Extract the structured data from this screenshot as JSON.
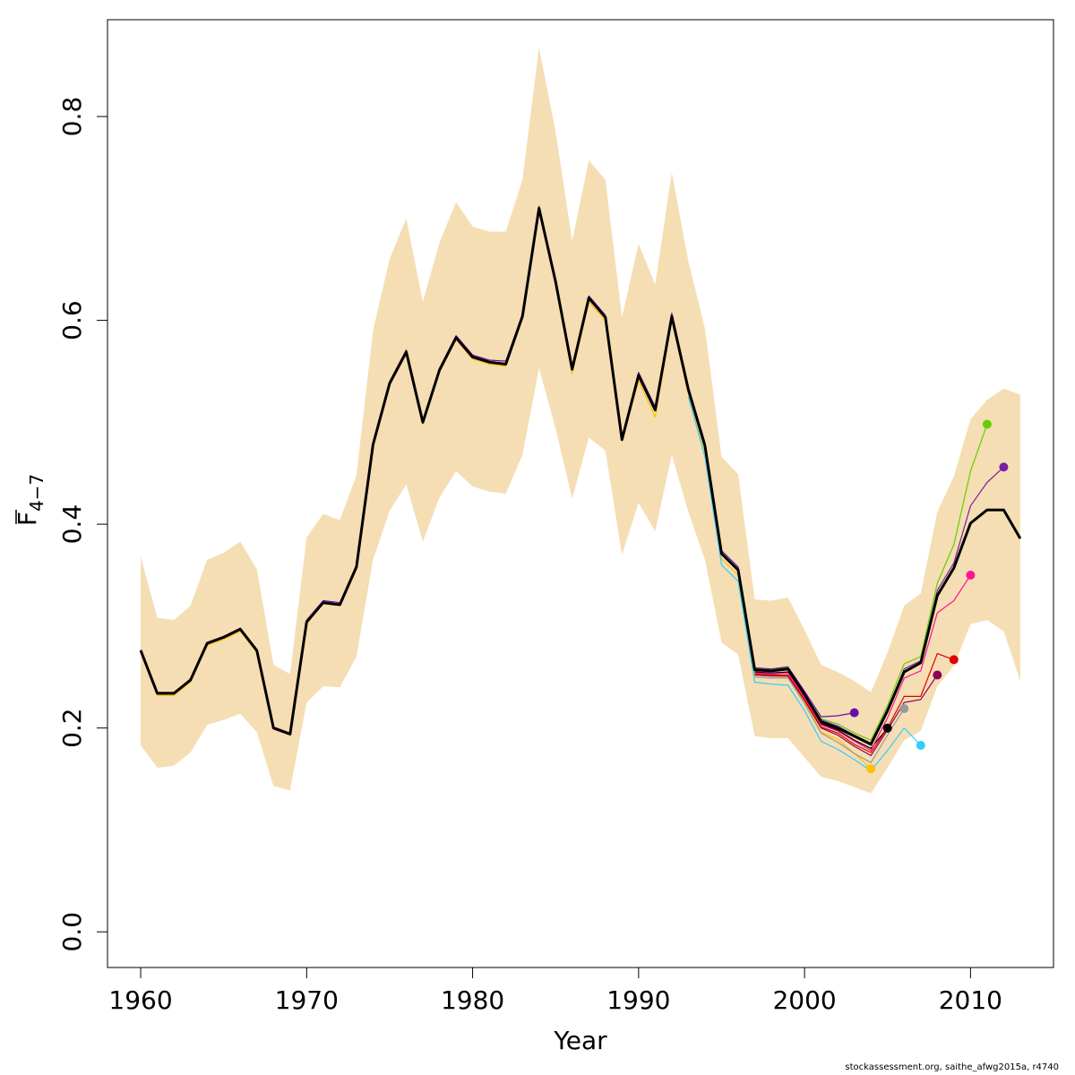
{
  "chart_data": {
    "type": "line",
    "title": "",
    "xlabel": "Year",
    "ylabel_main": "F",
    "ylabel_sub": "4−7",
    "xlim": [
      1958,
      2015
    ],
    "ylim": [
      -0.035,
      0.895
    ],
    "xticks": [
      1960,
      1970,
      1980,
      1990,
      2000,
      2010
    ],
    "yticks": [
      0.0,
      0.2,
      0.4,
      0.6,
      0.8
    ],
    "ytick_labels": [
      "0.0",
      "0.2",
      "0.4",
      "0.6",
      "0.8"
    ],
    "grid": false,
    "band": {
      "color": "#F5DEB3",
      "x": [
        1960,
        1961,
        1962,
        1963,
        1964,
        1965,
        1966,
        1967,
        1968,
        1969,
        1970,
        1971,
        1972,
        1973,
        1974,
        1975,
        1976,
        1977,
        1978,
        1979,
        1980,
        1981,
        1982,
        1983,
        1984,
        1985,
        1986,
        1987,
        1988,
        1989,
        1990,
        1991,
        1992,
        1993,
        1994,
        1995,
        1996,
        1997,
        1998,
        1999,
        2000,
        2001,
        2002,
        2003,
        2004,
        2005,
        2006,
        2007,
        2008,
        2009,
        2010,
        2011,
        2012,
        2013
      ],
      "upper": [
        0.368,
        0.308,
        0.306,
        0.32,
        0.365,
        0.372,
        0.383,
        0.356,
        0.262,
        0.253,
        0.387,
        0.41,
        0.404,
        0.448,
        0.59,
        0.66,
        0.7,
        0.618,
        0.676,
        0.716,
        0.692,
        0.687,
        0.687,
        0.738,
        0.868,
        0.785,
        0.678,
        0.757,
        0.738,
        0.603,
        0.675,
        0.635,
        0.745,
        0.658,
        0.592,
        0.466,
        0.449,
        0.326,
        0.325,
        0.328,
        0.296,
        0.262,
        0.255,
        0.246,
        0.235,
        0.274,
        0.32,
        0.332,
        0.412,
        0.447,
        0.503,
        0.522,
        0.533,
        0.527
      ],
      "lower": [
        0.183,
        0.161,
        0.163,
        0.176,
        0.203,
        0.208,
        0.214,
        0.196,
        0.143,
        0.139,
        0.225,
        0.241,
        0.24,
        0.27,
        0.365,
        0.413,
        0.439,
        0.383,
        0.426,
        0.452,
        0.437,
        0.432,
        0.43,
        0.468,
        0.553,
        0.494,
        0.425,
        0.485,
        0.472,
        0.37,
        0.421,
        0.393,
        0.468,
        0.412,
        0.365,
        0.284,
        0.272,
        0.192,
        0.19,
        0.19,
        0.171,
        0.152,
        0.148,
        0.142,
        0.136,
        0.161,
        0.188,
        0.197,
        0.241,
        0.261,
        0.302,
        0.306,
        0.295,
        0.246
      ]
    },
    "series": [
      {
        "color": "#6A0DAD",
        "end_marker": true,
        "x": [
          1960,
          1961,
          1962,
          1963,
          1964,
          1965,
          1966,
          1967,
          1968,
          1969,
          1970,
          1971,
          1972,
          1973,
          1974,
          1975,
          1976,
          1977,
          1978,
          1979,
          1980,
          1981,
          1982,
          1983,
          1984,
          1985,
          1986,
          1987,
          1988,
          1989,
          1990,
          1991,
          1992,
          1993,
          1994,
          1995,
          1996,
          1997,
          1998,
          1999,
          2000,
          2001,
          2002,
          2003
        ],
        "y": [
          0.277,
          0.235,
          0.235,
          0.248,
          0.284,
          0.29,
          0.298,
          0.277,
          0.201,
          0.195,
          0.306,
          0.325,
          0.323,
          0.36,
          0.48,
          0.54,
          0.571,
          0.501,
          0.553,
          0.585,
          0.566,
          0.561,
          0.56,
          0.606,
          0.712,
          0.64,
          0.555,
          0.624,
          0.605,
          0.485,
          0.549,
          0.515,
          0.607,
          0.535,
          0.48,
          0.374,
          0.358,
          0.259,
          0.258,
          0.26,
          0.236,
          0.211,
          0.212,
          0.215
        ]
      },
      {
        "color": "#FFC000",
        "end_marker": true,
        "x": [
          1960,
          1961,
          1962,
          1963,
          1964,
          1965,
          1966,
          1967,
          1968,
          1969,
          1970,
          1971,
          1972,
          1973,
          1974,
          1975,
          1976,
          1977,
          1978,
          1979,
          1980,
          1981,
          1982,
          1983,
          1984,
          1985,
          1986,
          1987,
          1988,
          1989,
          1990,
          1991,
          1992,
          1993,
          1994,
          1995,
          1996,
          1997,
          1998,
          1999,
          2000,
          2001,
          2002,
          2003,
          2004
        ],
        "y": [
          0.274,
          0.232,
          0.232,
          0.245,
          0.281,
          0.287,
          0.295,
          0.274,
          0.199,
          0.193,
          0.302,
          0.322,
          0.32,
          0.356,
          0.476,
          0.536,
          0.567,
          0.498,
          0.549,
          0.581,
          0.562,
          0.557,
          0.555,
          0.602,
          0.707,
          0.635,
          0.548,
          0.618,
          0.6,
          0.481,
          0.541,
          0.505,
          0.6,
          0.528,
          0.472,
          0.366,
          0.35,
          0.25,
          0.249,
          0.25,
          0.226,
          0.196,
          0.189,
          0.175,
          0.16
        ]
      },
      {
        "color": "#000000",
        "end_marker": true,
        "x": [
          1997,
          1998,
          1999,
          2000,
          2001,
          2002,
          2003,
          2004,
          2005
        ],
        "y": [
          0.255,
          0.254,
          0.255,
          0.231,
          0.204,
          0.198,
          0.188,
          0.18,
          0.2
        ]
      },
      {
        "color": "#999999",
        "end_marker": true,
        "x": [
          1997,
          1998,
          1999,
          2000,
          2001,
          2002,
          2003,
          2004,
          2005,
          2006
        ],
        "y": [
          0.25,
          0.249,
          0.249,
          0.224,
          0.195,
          0.186,
          0.175,
          0.166,
          0.193,
          0.219
        ]
      },
      {
        "color": "#33CCFF",
        "end_marker": true,
        "x": [
          1993,
          1994,
          1995,
          1996,
          1997,
          1998,
          1999,
          2000,
          2001,
          2002,
          2003,
          2004,
          2005,
          2006,
          2007
        ],
        "y": [
          0.525,
          0.466,
          0.36,
          0.344,
          0.245,
          0.243,
          0.242,
          0.217,
          0.187,
          0.179,
          0.169,
          0.158,
          0.178,
          0.2,
          0.183
        ]
      },
      {
        "color": "#8B0057",
        "end_marker": true,
        "x": [
          1997,
          1998,
          1999,
          2000,
          2001,
          2002,
          2003,
          2004,
          2005,
          2006,
          2007,
          2008
        ],
        "y": [
          0.252,
          0.251,
          0.251,
          0.227,
          0.2,
          0.193,
          0.182,
          0.173,
          0.198,
          0.225,
          0.228,
          0.252
        ]
      },
      {
        "color": "#E00000",
        "end_marker": true,
        "x": [
          1997,
          1998,
          1999,
          2000,
          2001,
          2002,
          2003,
          2004,
          2005,
          2006,
          2007,
          2008,
          2009
        ],
        "y": [
          0.253,
          0.252,
          0.252,
          0.228,
          0.201,
          0.195,
          0.184,
          0.176,
          0.2,
          0.231,
          0.231,
          0.273,
          0.267
        ]
      },
      {
        "color": "#FF1493",
        "end_marker": true,
        "x": [
          1997,
          1998,
          1999,
          2000,
          2001,
          2002,
          2003,
          2004,
          2005,
          2006,
          2007,
          2008,
          2009,
          2010
        ],
        "y": [
          0.254,
          0.253,
          0.254,
          0.23,
          0.203,
          0.197,
          0.187,
          0.178,
          0.21,
          0.249,
          0.256,
          0.313,
          0.325,
          0.35
        ]
      },
      {
        "color": "#66CC00",
        "end_marker": true,
        "x": [
          1997,
          1998,
          1999,
          2000,
          2001,
          2002,
          2003,
          2004,
          2005,
          2006,
          2007,
          2008,
          2009,
          2010,
          2011
        ],
        "y": [
          0.258,
          0.257,
          0.259,
          0.234,
          0.209,
          0.204,
          0.195,
          0.188,
          0.222,
          0.263,
          0.27,
          0.342,
          0.38,
          0.452,
          0.498
        ]
      },
      {
        "color": "#7B1FA2",
        "end_marker": true,
        "x": [
          1997,
          1998,
          1999,
          2000,
          2001,
          2002,
          2003,
          2004,
          2005,
          2006,
          2007,
          2008,
          2009,
          2010,
          2011,
          2012
        ],
        "y": [
          0.257,
          0.256,
          0.258,
          0.233,
          0.208,
          0.202,
          0.193,
          0.185,
          0.218,
          0.258,
          0.266,
          0.335,
          0.362,
          0.418,
          0.441,
          0.456
        ]
      },
      {
        "color": "#000000",
        "end_marker": false,
        "bold": true,
        "x": [
          1960,
          1961,
          1962,
          1963,
          1964,
          1965,
          1966,
          1967,
          1968,
          1969,
          1970,
          1971,
          1972,
          1973,
          1974,
          1975,
          1976,
          1977,
          1978,
          1979,
          1980,
          1981,
          1982,
          1983,
          1984,
          1985,
          1986,
          1987,
          1988,
          1989,
          1990,
          1991,
          1992,
          1993,
          1994,
          1995,
          1996,
          1997,
          1998,
          1999,
          2000,
          2001,
          2002,
          2003,
          2004,
          2005,
          2006,
          2007,
          2008,
          2009,
          2010,
          2011,
          2012,
          2013
        ],
        "y": [
          0.276,
          0.234,
          0.234,
          0.247,
          0.283,
          0.289,
          0.297,
          0.276,
          0.2,
          0.194,
          0.304,
          0.323,
          0.321,
          0.358,
          0.478,
          0.538,
          0.569,
          0.5,
          0.551,
          0.583,
          0.564,
          0.559,
          0.557,
          0.604,
          0.71,
          0.638,
          0.552,
          0.622,
          0.603,
          0.483,
          0.546,
          0.512,
          0.604,
          0.532,
          0.477,
          0.371,
          0.355,
          0.257,
          0.256,
          0.258,
          0.233,
          0.206,
          0.2,
          0.192,
          0.184,
          0.217,
          0.255,
          0.264,
          0.33,
          0.357,
          0.401,
          0.414,
          0.414,
          0.386
        ]
      }
    ]
  },
  "credit": "stockassessment.org, saithe_afwg2015a, r4740"
}
